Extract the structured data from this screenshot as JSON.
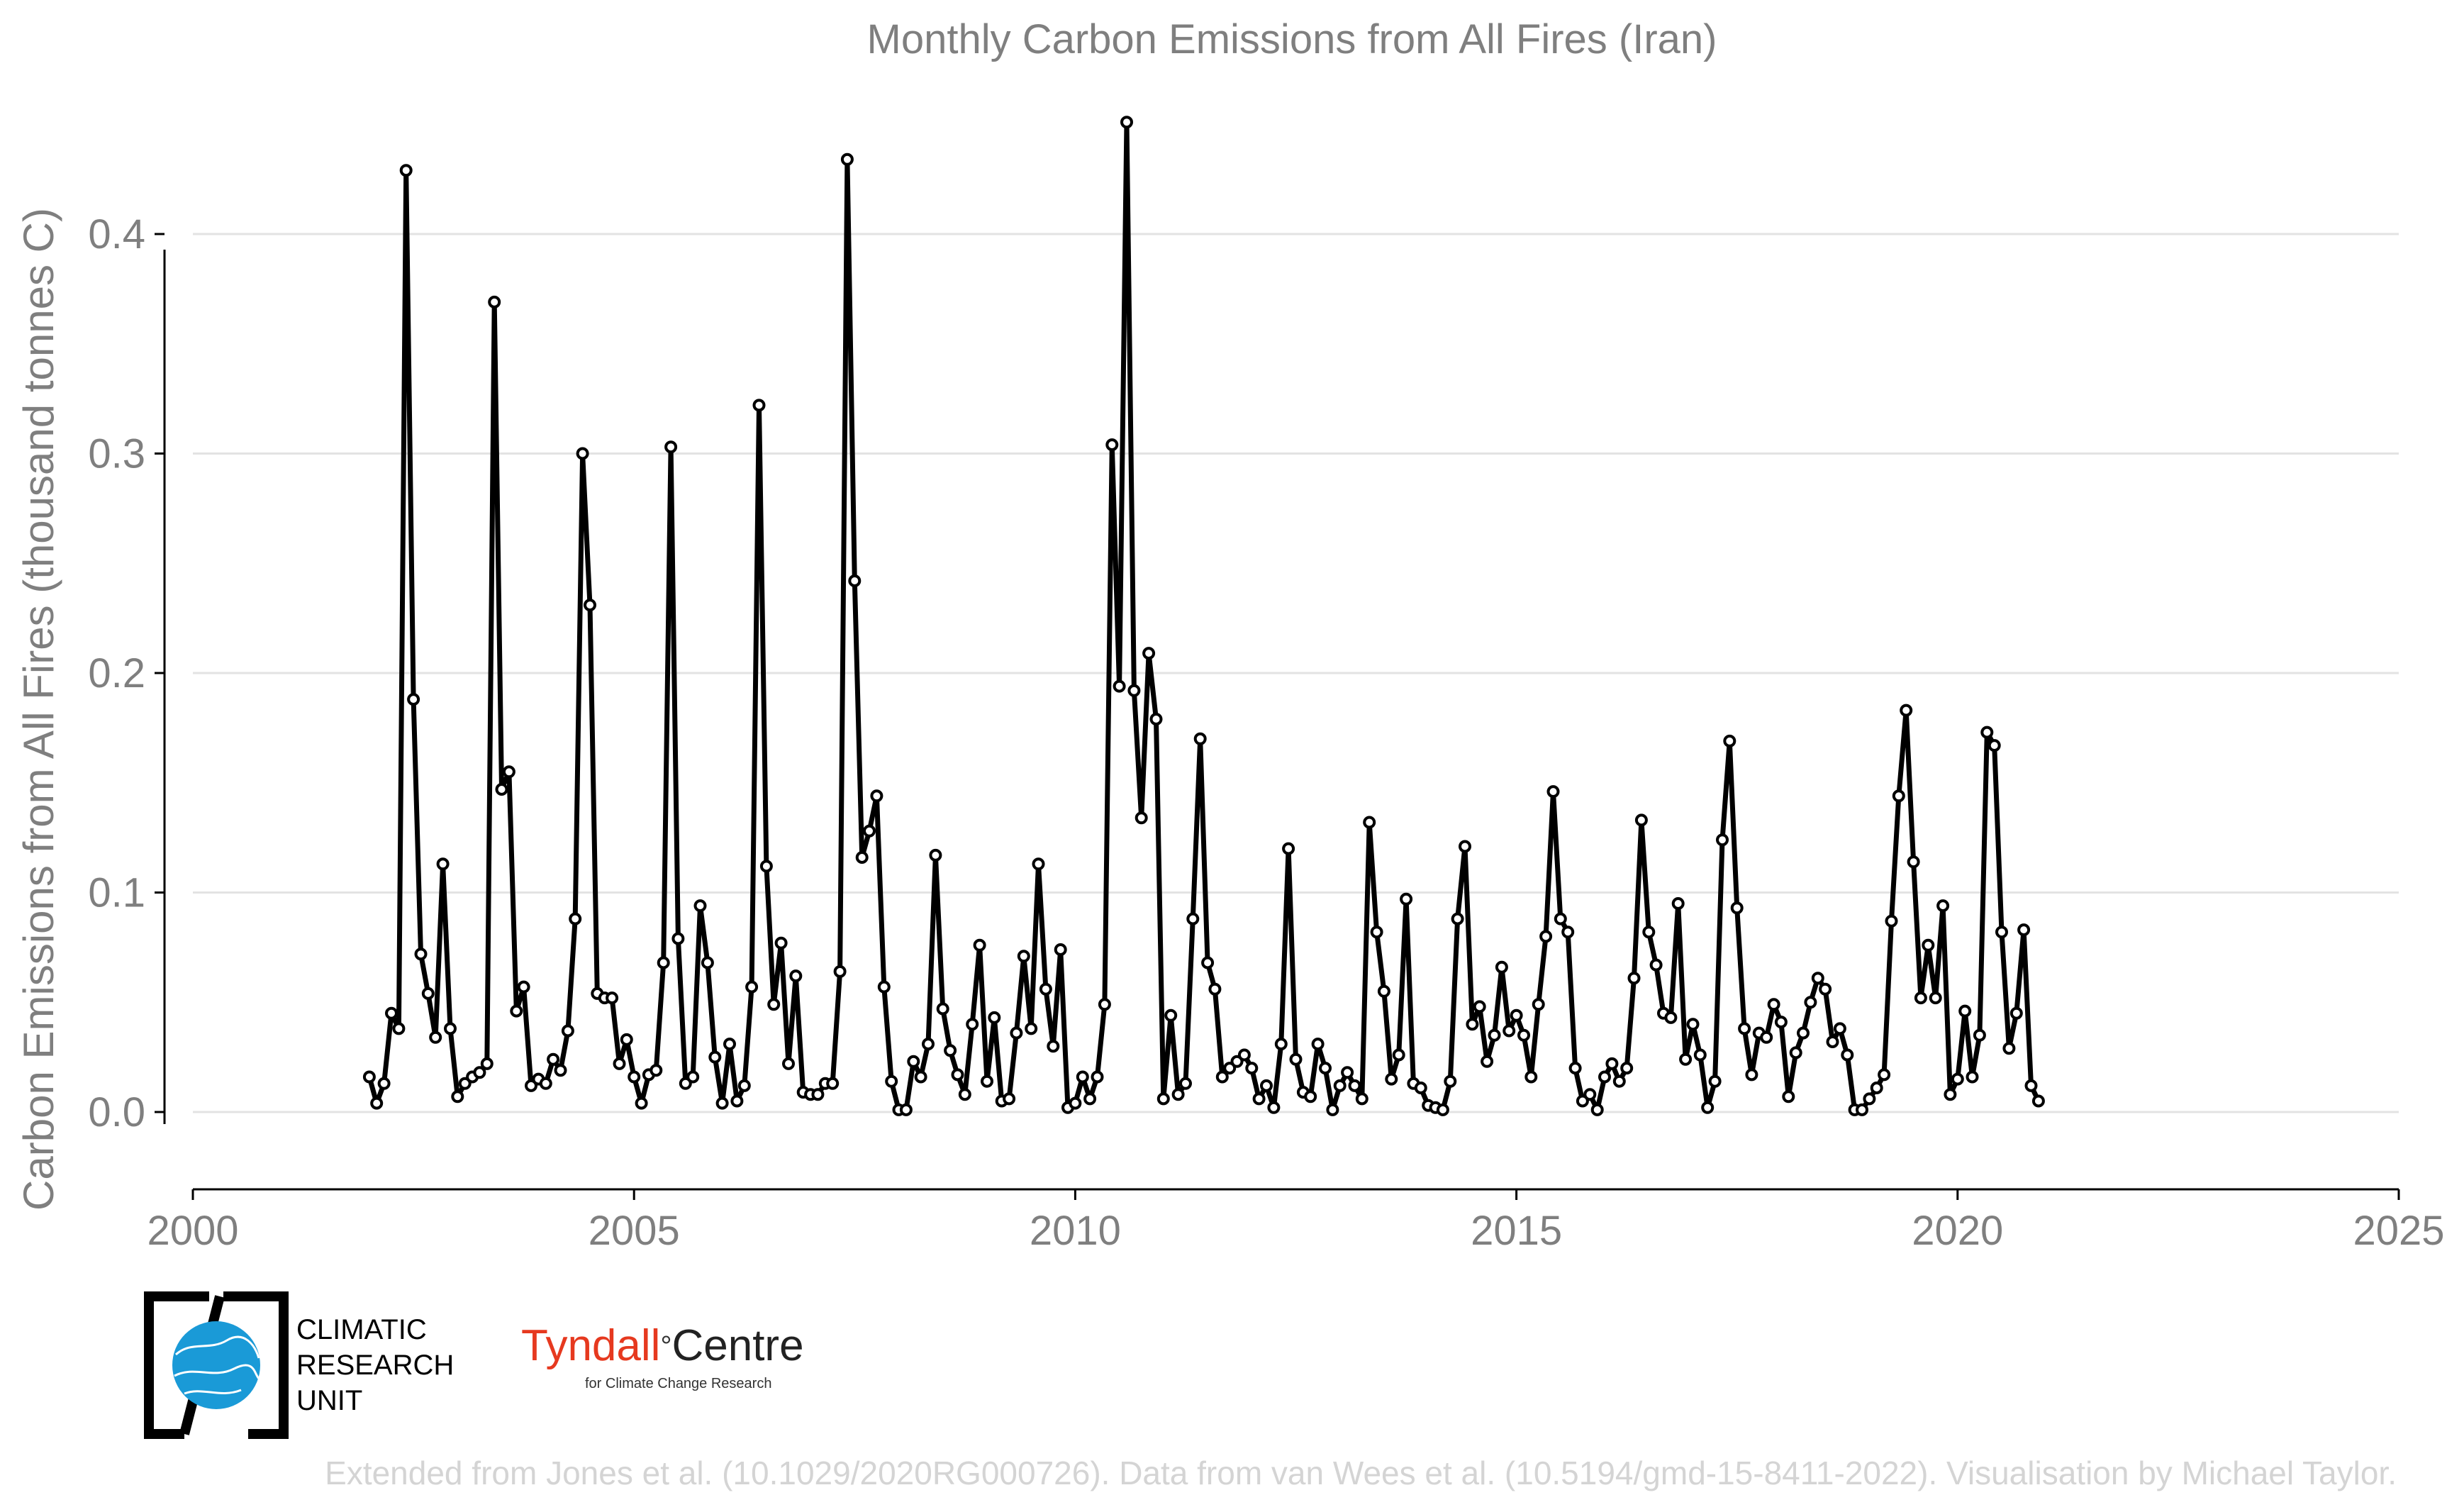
{
  "chart_data": {
    "type": "line",
    "title": "Monthly Carbon Emissions from All Fires (Iran)",
    "xlabel": "",
    "ylabel": "Carbon Emissions from All Fires (thousand tonnes C)",
    "xlim": [
      2000,
      2025
    ],
    "ylim": [
      -0.0,
      0.45
    ],
    "xticks": [
      "2000",
      "2005",
      "2010",
      "2015",
      "2020",
      "2025"
    ],
    "yticks": [
      "0.0",
      "0.1",
      "0.2",
      "0.3",
      "0.4"
    ],
    "grid": "horizontal",
    "legend": "none",
    "series": [
      {
        "x": [
          "2002-01",
          "2002-02",
          "2002-03",
          "2002-04",
          "2002-05",
          "2002-06",
          "2002-07",
          "2002-08",
          "2002-09",
          "2002-10",
          "2002-11",
          "2002-12",
          "2003-01",
          "2003-02",
          "2003-03",
          "2003-04",
          "2003-05",
          "2003-06",
          "2003-07",
          "2003-08",
          "2003-09",
          "2003-10",
          "2003-11",
          "2003-12",
          "2004-01",
          "2004-02",
          "2004-03",
          "2004-04",
          "2004-05",
          "2004-06",
          "2004-07",
          "2004-08",
          "2004-09",
          "2004-10",
          "2004-11",
          "2004-12",
          "2005-01",
          "2005-02",
          "2005-03",
          "2005-04",
          "2005-05",
          "2005-06",
          "2005-07",
          "2005-08",
          "2005-09",
          "2005-10",
          "2005-11",
          "2005-12",
          "2006-01",
          "2006-02",
          "2006-03",
          "2006-04",
          "2006-05",
          "2006-06",
          "2006-07",
          "2006-08",
          "2006-09",
          "2006-10",
          "2006-11",
          "2006-12",
          "2007-01",
          "2007-02",
          "2007-03",
          "2007-04",
          "2007-05",
          "2007-06",
          "2007-07",
          "2007-08",
          "2007-09",
          "2007-10",
          "2007-11",
          "2007-12",
          "2008-01",
          "2008-02",
          "2008-03",
          "2008-04",
          "2008-05",
          "2008-06",
          "2008-07",
          "2008-08",
          "2008-09",
          "2008-10",
          "2008-11",
          "2008-12",
          "2009-01",
          "2009-02",
          "2009-03",
          "2009-04",
          "2009-05",
          "2009-06",
          "2009-07",
          "2009-08",
          "2009-09",
          "2009-10",
          "2009-11",
          "2009-12",
          "2010-01",
          "2010-02",
          "2010-03",
          "2010-04",
          "2010-05",
          "2010-06",
          "2010-07",
          "2010-08",
          "2010-09",
          "2010-10",
          "2010-11",
          "2010-12",
          "2011-01",
          "2011-02",
          "2011-03",
          "2011-04",
          "2011-05",
          "2011-06",
          "2011-07",
          "2011-08",
          "2011-09",
          "2011-10",
          "2011-11",
          "2011-12",
          "2012-01",
          "2012-02",
          "2012-03",
          "2012-04",
          "2012-05",
          "2012-06",
          "2012-07",
          "2012-08",
          "2012-09",
          "2012-10",
          "2012-11",
          "2012-12",
          "2013-01",
          "2013-02",
          "2013-03",
          "2013-04",
          "2013-05",
          "2013-06",
          "2013-07",
          "2013-08",
          "2013-09",
          "2013-10",
          "2013-11",
          "2013-12",
          "2014-01",
          "2014-02",
          "2014-03",
          "2014-04",
          "2014-05",
          "2014-06",
          "2014-07",
          "2014-08",
          "2014-09",
          "2014-10",
          "2014-11",
          "2014-12",
          "2015-01",
          "2015-02",
          "2015-03",
          "2015-04",
          "2015-05",
          "2015-06",
          "2015-07",
          "2015-08",
          "2015-09",
          "2015-10",
          "2015-11",
          "2015-12",
          "2016-01",
          "2016-02",
          "2016-03",
          "2016-04",
          "2016-05",
          "2016-06",
          "2016-07",
          "2016-08",
          "2016-09",
          "2016-10",
          "2016-11",
          "2016-12",
          "2017-01",
          "2017-02",
          "2017-03",
          "2017-04",
          "2017-05",
          "2017-06",
          "2017-07",
          "2017-08",
          "2017-09",
          "2017-10",
          "2017-11",
          "2017-12",
          "2018-01",
          "2018-02",
          "2018-03",
          "2018-04",
          "2018-05",
          "2018-06",
          "2018-07",
          "2018-08",
          "2018-09",
          "2018-10",
          "2018-11",
          "2018-12",
          "2019-01",
          "2019-02",
          "2019-03",
          "2019-04",
          "2019-05",
          "2019-06",
          "2019-07",
          "2019-08",
          "2019-09",
          "2019-10",
          "2019-11",
          "2019-12",
          "2020-01",
          "2020-02",
          "2020-03",
          "2020-04",
          "2020-05",
          "2020-06",
          "2020-07",
          "2020-08",
          "2020-09",
          "2020-10",
          "2020-11",
          "2020-12"
        ],
        "y": [
          0.016,
          0.004,
          0.013,
          0.045,
          0.038,
          0.429,
          0.188,
          0.072,
          0.054,
          0.034,
          0.113,
          0.038,
          0.007,
          0.013,
          0.016,
          0.018,
          0.022,
          0.369,
          0.147,
          0.155,
          0.046,
          0.057,
          0.012,
          0.015,
          0.013,
          0.024,
          0.019,
          0.037,
          0.088,
          0.3,
          0.231,
          0.054,
          0.052,
          0.052,
          0.022,
          0.033,
          0.016,
          0.004,
          0.017,
          0.019,
          0.068,
          0.303,
          0.079,
          0.013,
          0.016,
          0.094,
          0.068,
          0.025,
          0.004,
          0.031,
          0.005,
          0.012,
          0.057,
          0.322,
          0.112,
          0.049,
          0.077,
          0.022,
          0.062,
          0.009,
          0.008,
          0.008,
          0.013,
          0.013,
          0.064,
          0.434,
          0.242,
          0.116,
          0.128,
          0.144,
          0.057,
          0.014,
          0.001,
          0.001,
          0.023,
          0.016,
          0.031,
          0.117,
          0.047,
          0.028,
          0.017,
          0.008,
          0.04,
          0.076,
          0.014,
          0.043,
          0.005,
          0.006,
          0.036,
          0.071,
          0.038,
          0.113,
          0.056,
          0.03,
          0.074,
          0.002,
          0.004,
          0.016,
          0.006,
          0.016,
          0.049,
          0.304,
          0.194,
          0.451,
          0.192,
          0.134,
          0.209,
          0.179,
          0.006,
          0.044,
          0.008,
          0.013,
          0.088,
          0.17,
          0.068,
          0.056,
          0.016,
          0.02,
          0.023,
          0.026,
          0.02,
          0.006,
          0.012,
          0.002,
          0.031,
          0.12,
          0.024,
          0.009,
          0.007,
          0.031,
          0.02,
          0.001,
          0.012,
          0.018,
          0.012,
          0.006,
          0.132,
          0.082,
          0.055,
          0.015,
          0.026,
          0.097,
          0.013,
          0.011,
          0.003,
          0.002,
          0.001,
          0.014,
          0.088,
          0.121,
          0.04,
          0.048,
          0.023,
          0.035,
          0.066,
          0.037,
          0.044,
          0.035,
          0.016,
          0.049,
          0.08,
          0.146,
          0.088,
          0.082,
          0.02,
          0.005,
          0.008,
          0.001,
          0.016,
          0.022,
          0.014,
          0.02,
          0.061,
          0.133,
          0.082,
          0.067,
          0.045,
          0.043,
          0.095,
          0.024,
          0.04,
          0.026,
          0.002,
          0.014,
          0.124,
          0.169,
          0.093,
          0.038,
          0.017,
          0.036,
          0.034,
          0.049,
          0.041,
          0.007,
          0.027,
          0.036,
          0.05,
          0.061,
          0.056,
          0.032,
          0.038,
          0.026,
          0.001,
          0.001,
          0.006,
          0.011,
          0.017,
          0.087,
          0.144,
          0.183,
          0.114,
          0.052,
          0.076,
          0.052,
          0.094,
          0.008,
          0.015,
          0.046,
          0.016,
          0.035,
          0.173,
          0.167,
          0.082,
          0.029,
          0.045,
          0.083,
          0.012,
          0.005
        ]
      }
    ]
  },
  "logos": {
    "cru_line1": "CLIMATIC",
    "cru_line2": "RESEARCH",
    "cru_line3": "UNIT",
    "tyndall_name": "Tyndall",
    "tyndall_degree": "°",
    "tyndall_centre": "Centre",
    "tyndall_sub": "for Climate Change Research"
  },
  "footer": "Extended from Jones et al. (10.1029/2020RG000726). Data from van Wees et al. (10.5194/gmd-15-8411-2022). Visualisation by Michael Taylor.",
  "colors": {
    "line": "#000000",
    "marker_fill": "#ffffff",
    "text": "#7f7f7f",
    "tyndall_red": "#e6391f",
    "cru_blue": "#1a9ad7"
  }
}
